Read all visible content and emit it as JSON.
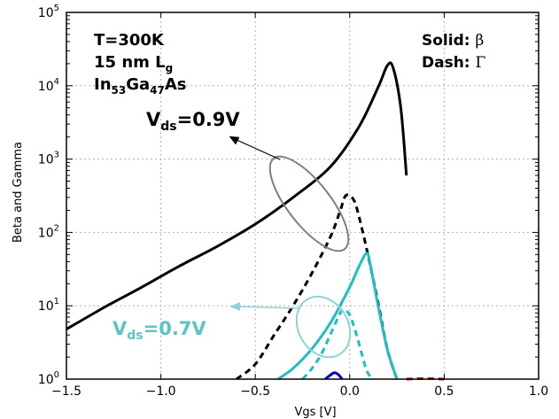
{
  "chart_data": {
    "type": "line",
    "xlabel": "Vgs [V]",
    "ylabel": "Beta and Gamma",
    "xlim": [
      -1.5,
      1.0
    ],
    "ylim_log10": [
      0,
      5
    ],
    "yscale": "log",
    "grid": true,
    "x_ticks": [
      -1.5,
      -1.0,
      -0.5,
      0.0,
      0.5,
      1.0
    ],
    "x_tick_labels": [
      "−1.5",
      "−1.0",
      "−0.5",
      "0.0",
      "0.5",
      "1.0"
    ],
    "y_ticks_exp": [
      0,
      1,
      2,
      3,
      4,
      5
    ],
    "y_tick_base": "10",
    "y_tick_exps": [
      "0",
      "1",
      "2",
      "3",
      "4",
      "5"
    ],
    "annotations": {
      "temperature": "T=300K",
      "gate_length_prefix": "15 nm L",
      "gate_length_sub": "g",
      "material_a": "In",
      "material_sub_a": "53",
      "material_b": "Ga",
      "material_sub_b": "47",
      "material_c": "As",
      "legend_solid_label": "Solid: ",
      "legend_solid_symbol": "β",
      "legend_dash_label": "Dash: ",
      "legend_dash_symbol": "Γ",
      "vds_high_prefix": "V",
      "vds_high_sub": "ds",
      "vds_high_value": "=0.9V",
      "vds_low_prefix": "V",
      "vds_low_sub": "ds",
      "vds_low_value": "=0.7V"
    },
    "colors": {
      "black": "#000000",
      "cyan": "#1fbfbf",
      "blue": "#0000cc",
      "red": "#cc0000",
      "ellipse_gray": "#7f7f7f",
      "ellipse_cyan": "#8fd4d4",
      "grid": "#b0b0b0"
    },
    "series": [
      {
        "name": "Beta Vds=0.9V",
        "style": "solid",
        "color": "#000000",
        "x": [
          -1.5,
          -1.3,
          -1.1,
          -0.9,
          -0.7,
          -0.5,
          -0.3,
          -0.1,
          0.05,
          0.15,
          0.2,
          0.23,
          0.27,
          0.3
        ],
        "y": [
          4.8,
          9.5,
          18,
          35,
          65,
          130,
          300,
          800,
          2800,
          9500,
          19000,
          17500,
          5000,
          600
        ]
      },
      {
        "name": "Gamma Vds=0.9V",
        "style": "dash",
        "color": "#000000",
        "x": [
          -0.6,
          -0.5,
          -0.4,
          -0.3,
          -0.2,
          -0.1,
          -0.05,
          -0.02,
          0.02,
          0.05,
          0.1,
          0.15,
          0.2,
          0.25
        ],
        "y": [
          1.0,
          1.6,
          4.0,
          10,
          28,
          90,
          200,
          320,
          280,
          160,
          45,
          11,
          2.5,
          1.0
        ]
      },
      {
        "name": "Beta Vds=0.7V",
        "style": "solid",
        "color": "#1fbfbf",
        "x": [
          -0.38,
          -0.3,
          -0.2,
          -0.1,
          0.0,
          0.05,
          0.09,
          0.11,
          0.15,
          0.2,
          0.25
        ],
        "y": [
          1.0,
          1.4,
          2.6,
          6.0,
          18,
          35,
          52,
          35,
          10,
          2.5,
          1.0
        ]
      },
      {
        "name": "Gamma Vds=0.7V",
        "style": "dash",
        "color": "#1fbfbf",
        "x": [
          -0.25,
          -0.2,
          -0.15,
          -0.1,
          -0.05,
          -0.03,
          0.0,
          0.03,
          0.06,
          0.09,
          0.12
        ],
        "y": [
          1.0,
          1.4,
          2.2,
          4.2,
          8.0,
          8.8,
          7.5,
          4.5,
          2.4,
          1.3,
          1.0
        ]
      },
      {
        "name": "Beta low Vds",
        "style": "solid",
        "color": "#0000cc",
        "x": [
          -0.13,
          -0.1,
          -0.08,
          -0.06,
          -0.04
        ],
        "y": [
          1.0,
          1.15,
          1.22,
          1.15,
          1.0
        ]
      },
      {
        "name": "Gamma low Vds",
        "style": "dash",
        "color": "#cc0000",
        "x": [
          0.3,
          0.4,
          0.5
        ],
        "y": [
          1.0,
          1.02,
          1.0
        ]
      }
    ]
  }
}
